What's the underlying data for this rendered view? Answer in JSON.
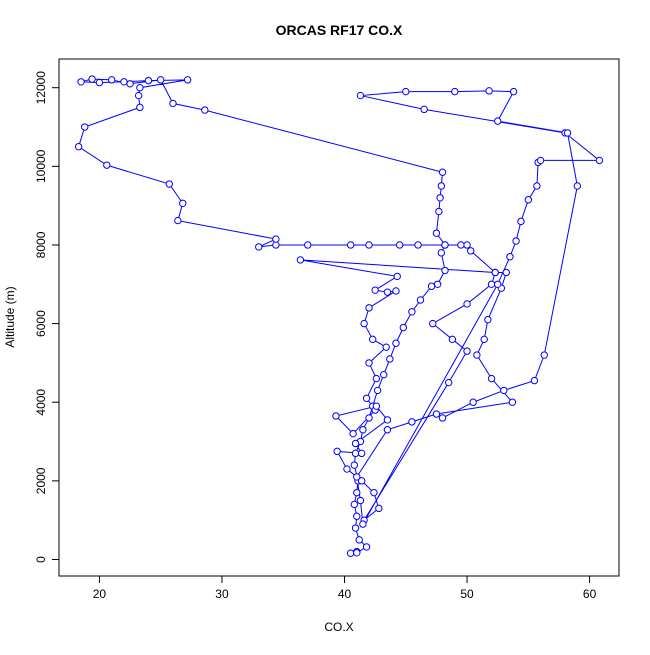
{
  "chart_data": {
    "type": "line",
    "title": "ORCAS RF17 CO.X",
    "x_label": "CO.X",
    "y_label": "Altitude (m)",
    "color": "#0000ff",
    "xlim": [
      16.7,
      62.4
    ],
    "ylim": [
      -420,
      12730
    ],
    "xticks": [
      20,
      30,
      40,
      50,
      60
    ],
    "yticks": [
      0,
      2000,
      4000,
      6000,
      8000,
      10000,
      12000
    ],
    "x": [
      41,
      40.5,
      41,
      41.8,
      41.2,
      40.9,
      41,
      40.8,
      41,
      41.1,
      40.8,
      40.9,
      41.3,
      41.5,
      42,
      42.3,
      42.7,
      43.2,
      43.7,
      44.2,
      44.8,
      45.5,
      46.2,
      47.1,
      47.6,
      48.2,
      47.9,
      48.2,
      46,
      44.5,
      42,
      40.5,
      37,
      34.4,
      33,
      34.4,
      26.4,
      26.8,
      25.7,
      20.6,
      18.3,
      18.8,
      23.3,
      23.2,
      23.3,
      27.2,
      24,
      22,
      20,
      18.5,
      19.4,
      21,
      22.5,
      25,
      26,
      28.6,
      48,
      47.9,
      47.8,
      47.7,
      47.5,
      48.2,
      49.5,
      50,
      50.3,
      52.3,
      36.4,
      44.3,
      42.5,
      43.5,
      44.2,
      42,
      41.6,
      42.3,
      43.4,
      42,
      42.6,
      41.8,
      42.5,
      40.7,
      39.3,
      42.6,
      43.5,
      40.9,
      41.4,
      39.4,
      40.2,
      41.4,
      42.4,
      42.8,
      41.6,
      48.5,
      50,
      48.8,
      47.2,
      50,
      52,
      52.3,
      53.2,
      52.8,
      51.7,
      51.4,
      50.8,
      52,
      53.7,
      47.5,
      45.5,
      43.5,
      41,
      41.3,
      41.5,
      52.5,
      53.5,
      54,
      54.4,
      55,
      55.7,
      55.8,
      56,
      60.8,
      58,
      46.5,
      41.3,
      45,
      49,
      51.8,
      53.8,
      52.5,
      58.2,
      59,
      56.3,
      55.5,
      53,
      50.5,
      48
    ],
    "values": [
      200,
      160,
      170,
      320,
      500,
      800,
      1100,
      1400,
      1700,
      2000,
      2400,
      2700,
      3000,
      3300,
      3600,
      3900,
      4300,
      4700,
      5100,
      5500,
      5900,
      6300,
      6600,
      6950,
      7000,
      7350,
      7800,
      8000,
      8000,
      8000,
      8000,
      8000,
      8000,
      8000,
      7950,
      8150,
      8620,
      9060,
      9550,
      10030,
      10500,
      11000,
      11500,
      11800,
      12000,
      12200,
      12180,
      12150,
      12130,
      12150,
      12220,
      12200,
      12100,
      12200,
      11600,
      11430,
      9850,
      9500,
      9200,
      8850,
      8300,
      8000,
      8000,
      8000,
      7850,
      7300,
      7620,
      7200,
      6850,
      6800,
      6830,
      6400,
      6000,
      5600,
      5400,
      5000,
      4600,
      4100,
      3800,
      3200,
      3650,
      3900,
      3550,
      2950,
      2700,
      2750,
      2300,
      2000,
      1700,
      1300,
      1000,
      4500,
      5300,
      5600,
      6000,
      6500,
      7000,
      7300,
      7300,
      6900,
      6100,
      5600,
      5200,
      4600,
      4000,
      3700,
      3500,
      3300,
      2100,
      1500,
      900,
      7000,
      7700,
      8100,
      8600,
      9150,
      9500,
      10100,
      10150,
      10150,
      10850,
      11450,
      11800,
      11900,
      11900,
      11920,
      11900,
      11150,
      10850,
      9500,
      5200,
      4550,
      4300,
      4000,
      3600
    ]
  }
}
